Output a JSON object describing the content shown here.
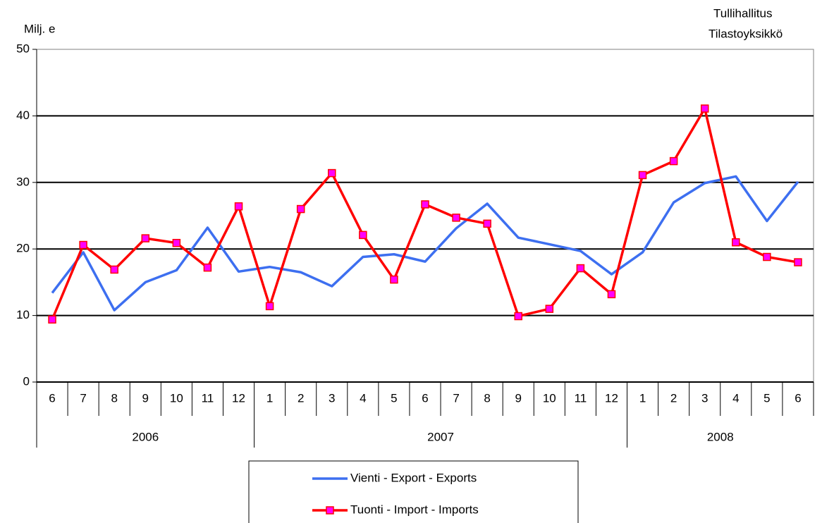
{
  "chart_data": {
    "type": "line",
    "y_label": "Milj. e",
    "source": [
      "Tullihallitus",
      "Tilastoyksikkö"
    ],
    "categories": [
      "6",
      "7",
      "8",
      "9",
      "10",
      "11",
      "12",
      "1",
      "2",
      "3",
      "4",
      "5",
      "6",
      "7",
      "8",
      "9",
      "10",
      "11",
      "12",
      "1",
      "2",
      "3",
      "4",
      "5",
      "6"
    ],
    "category_years": [
      "2006",
      "2006",
      "2006",
      "2006",
      "2006",
      "2006",
      "2006",
      "2007",
      "2007",
      "2007",
      "2007",
      "2007",
      "2007",
      "2007",
      "2007",
      "2007",
      "2007",
      "2007",
      "2007",
      "2008",
      "2008",
      "2008",
      "2008",
      "2008",
      "2008"
    ],
    "series": [
      {
        "name": "Vienti - Export - Exports",
        "color": "#3d6ff0",
        "marker": "none",
        "values": [
          13.4,
          19.5,
          10.8,
          15.0,
          16.8,
          23.2,
          16.6,
          17.3,
          16.5,
          14.4,
          18.8,
          19.2,
          18.1,
          23.1,
          26.8,
          21.7,
          20.7,
          19.7,
          16.2,
          19.5,
          27.0,
          29.9,
          30.9,
          24.2,
          30.1
        ]
      },
      {
        "name": "Tuonti - Import - Imports",
        "color": "#ff0000",
        "marker": "square",
        "marker_color": "#ff00ff",
        "values": [
          9.4,
          20.6,
          16.9,
          21.6,
          20.9,
          17.2,
          26.4,
          11.4,
          26.0,
          31.4,
          22.1,
          15.4,
          26.7,
          24.7,
          23.8,
          9.9,
          11.0,
          17.1,
          13.2,
          31.1,
          33.2,
          41.1,
          21.0,
          18.8,
          18.0
        ]
      }
    ],
    "ylim": [
      0,
      50
    ],
    "yticks": [
      0,
      10,
      20,
      30,
      40,
      50
    ],
    "grid": true
  }
}
